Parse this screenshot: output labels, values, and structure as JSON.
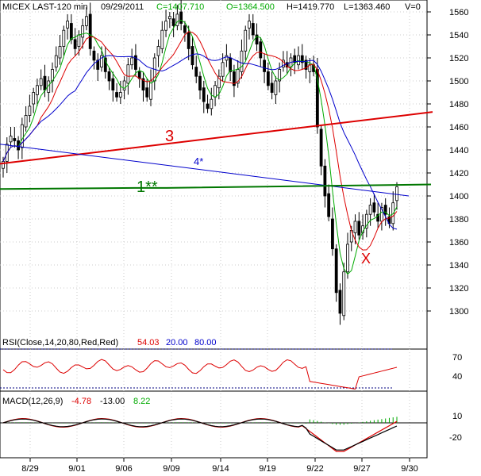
{
  "header": {
    "symbol": "MICEX LAST-120 min",
    "date": "09/29/2011",
    "close": "C=1407.710",
    "open": "O=1364.500",
    "high": "H=1419.770",
    "low": "L=1363.460",
    "volume": "V=0"
  },
  "annotations": {
    "line1": "1**",
    "line3": "3",
    "line4": "4*",
    "marker": "X"
  },
  "rsi_panel": {
    "label": "RSI(Close,14,20,80,Red,Red)",
    "value": "54.03",
    "lower": "20.00",
    "upper": "80.00",
    "ticks": [
      "70",
      "40"
    ]
  },
  "macd_panel": {
    "label": "MACD(12,26,9)",
    "macd": "-4.78",
    "signal": "-13.00",
    "hist": "8.22",
    "ticks": [
      "10",
      "-20"
    ]
  },
  "colors": {
    "blue": "#0000cc",
    "red": "#dd0000",
    "green": "#00aa00",
    "darkgreen": "#007700",
    "navy": "#000080"
  },
  "chart_data": {
    "type": "candlestick",
    "ylim": [
      1280,
      1570
    ],
    "y_ticks": [
      1300,
      1320,
      1340,
      1360,
      1380,
      1400,
      1420,
      1440,
      1460,
      1480,
      1500,
      1520,
      1540,
      1560
    ],
    "x_ticks": [
      "8/29",
      "9/01",
      "9/06",
      "9/09",
      "9/14",
      "9/19",
      "9/22",
      "9/27",
      "9/30"
    ],
    "closes": [
      1430,
      1445,
      1452,
      1448,
      1440,
      1462,
      1470,
      1478,
      1490,
      1496,
      1502,
      1492,
      1500,
      1510,
      1522,
      1530,
      1544,
      1552,
      1536,
      1528,
      1540,
      1548,
      1556,
      1528,
      1518,
      1510,
      1522,
      1508,
      1500,
      1492,
      1486,
      1490,
      1500,
      1514,
      1520,
      1510,
      1502,
      1492,
      1486,
      1500,
      1520,
      1530,
      1544,
      1552,
      1556,
      1548,
      1558,
      1550,
      1542,
      1528,
      1514,
      1504,
      1492,
      1482,
      1476,
      1484,
      1496,
      1504,
      1516,
      1522,
      1508,
      1496,
      1510,
      1526,
      1544,
      1552,
      1540,
      1532,
      1520,
      1508,
      1496,
      1490,
      1500,
      1510,
      1518,
      1512,
      1520,
      1516,
      1522,
      1516,
      1510,
      1514,
      1508,
      1460,
      1426,
      1400,
      1382,
      1354,
      1316,
      1298,
      1334,
      1358,
      1370,
      1378,
      1366,
      1374,
      1384,
      1392,
      1386,
      1378,
      1390,
      1384,
      1376,
      1394,
      1408
    ]
  }
}
